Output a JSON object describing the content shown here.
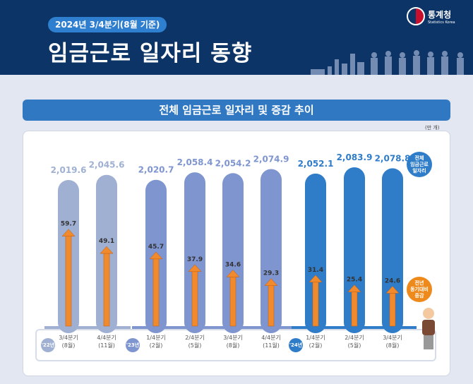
{
  "header": {
    "badge": "2024년 3/4분기(8월 기준)",
    "title": "임금근로 일자리 동향",
    "logo_ko": "통계청",
    "logo_en": "Statistics Korea"
  },
  "chart_data": {
    "type": "bar",
    "title": "전체 임금근로 일자리 및 증감 추이",
    "unit": "(만 개)",
    "years": [
      {
        "label": "'22년",
        "color": "#9fb0d3",
        "count": 2
      },
      {
        "label": "'23년",
        "color": "#7f95d0",
        "count": 4
      },
      {
        "label": "'24년",
        "color": "#2f7cc9",
        "count": 3
      }
    ],
    "categories": [
      [
        "3/4분기",
        "(8월)"
      ],
      [
        "4/4분기",
        "(11월)"
      ],
      [
        "1/4분기",
        "(2월)"
      ],
      [
        "2/4분기",
        "(5월)"
      ],
      [
        "3/4분기",
        "(8월)"
      ],
      [
        "4/4분기",
        "(11월)"
      ],
      [
        "1/4분기",
        "(2월)"
      ],
      [
        "2/4분기",
        "(5월)"
      ],
      [
        "3/4분기",
        "(8월)"
      ]
    ],
    "series": [
      {
        "name": "전체 임금근로 일자리",
        "values": [
          2019.6,
          2045.6,
          2020.7,
          2058.4,
          2054.2,
          2074.9,
          2052.1,
          2083.9,
          2078.8
        ],
        "labels": [
          "2,019.6",
          "2,045.6",
          "2,020.7",
          "2,058.4",
          "2,054.2",
          "2,074.9",
          "2,052.1",
          "2,083.9",
          "2,078.8"
        ]
      },
      {
        "name": "전년 동기대비 증감",
        "values": [
          59.7,
          49.1,
          45.7,
          37.9,
          34.6,
          29.3,
          31.4,
          25.4,
          24.6
        ],
        "color": "#f08a2c"
      }
    ],
    "legend": [
      {
        "text": "전체 임금근로 일자리",
        "lines": [
          "전체",
          "임금근로",
          "일자리"
        ],
        "color": "#2f7cc9"
      },
      {
        "text": "전년 동기대비 증감",
        "lines": [
          "전년",
          "동기대비",
          "증감"
        ],
        "color": "#ee8a1c"
      }
    ]
  }
}
